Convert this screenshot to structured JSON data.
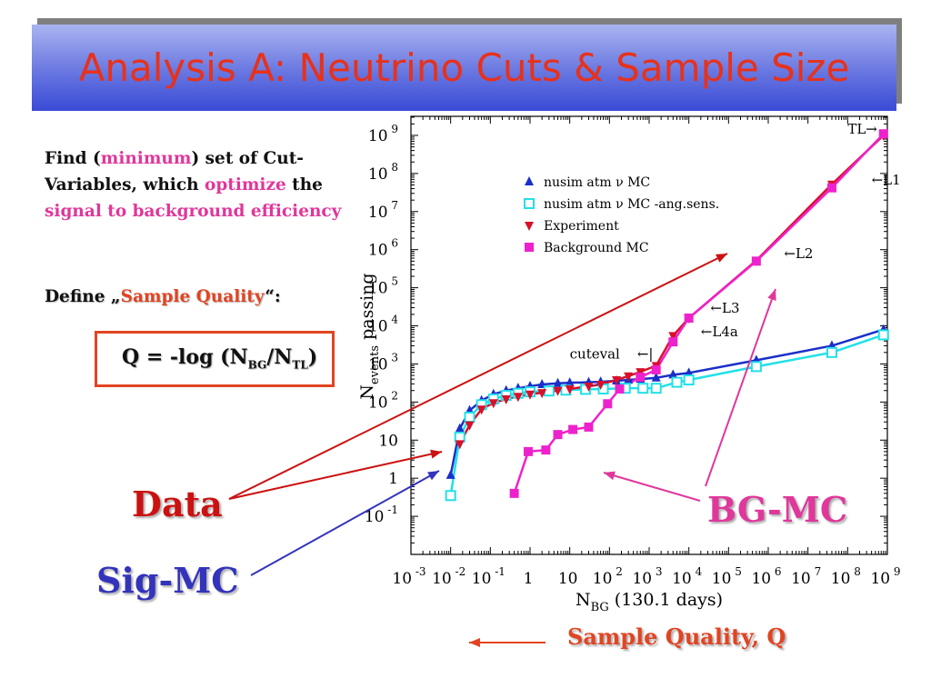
{
  "slide": {
    "title": "Analysis A: Neutrino Cuts & Sample Size",
    "intro": {
      "find": "Find (",
      "minimum": "minimum",
      "rest1": ") set of Cut-Variables, which ",
      "optimize": "optimize",
      "the": " the ",
      "signal": "signal to background efficiency"
    },
    "define": {
      "prefix": "Define „",
      "quality": "Sample Quality",
      "suffix": "“:"
    },
    "formula": {
      "q": "Q = -log (N",
      "bg": "BG",
      "slash": "/N",
      "tl": "TL",
      "close": ")"
    },
    "labels": {
      "data": "Data",
      "sigmc": "Sig-MC",
      "bgmc": "BG-MC",
      "sample_quality": "Sample Quality, Q"
    },
    "colors": {
      "title": "#e8311a",
      "data": "#cc1111",
      "sigmc": "#3333bb",
      "bgmc": "#e0379b",
      "accent": "#e24422"
    }
  },
  "chart_data": {
    "type": "line",
    "xscale": "log",
    "yscale": "log",
    "xlim": [
      0.001,
      1000000000
    ],
    "ylim": [
      0.01,
      3000000000
    ],
    "xlabel": "N_BG (130.1 days)",
    "ylabel": "N_events passing",
    "xticks": [
      "10^-3",
      "10^-2",
      "10^-1",
      "1",
      "10",
      "10^2",
      "10^3",
      "10^4",
      "10^5",
      "10^6",
      "10^7",
      "10^8",
      "10^9"
    ],
    "yticks": [
      "10^-1",
      "1",
      "10",
      "10^2",
      "10^3",
      "10^4",
      "10^5",
      "10^6",
      "10^7",
      "10^8",
      "10^9"
    ],
    "legend_position": "top-left",
    "series": [
      {
        "name": "nusim atm ν MC",
        "color": "#1a2fc9",
        "marker": "triangle-up",
        "points": [
          [
            0.01,
            1.2
          ],
          [
            0.017,
            20
          ],
          [
            0.03,
            60
          ],
          [
            0.06,
            110
          ],
          [
            0.12,
            160
          ],
          [
            0.25,
            200
          ],
          [
            0.5,
            230
          ],
          [
            1,
            260
          ],
          [
            2,
            290
          ],
          [
            5,
            310
          ],
          [
            10,
            320
          ],
          [
            30,
            330
          ],
          [
            60,
            340
          ],
          [
            150,
            360
          ],
          [
            300,
            380
          ],
          [
            600,
            400
          ],
          [
            1500,
            430
          ],
          [
            4000,
            520
          ],
          [
            10000,
            580
          ],
          [
            500000,
            1250
          ],
          [
            40000000,
            3000
          ],
          [
            800000000,
            8000
          ]
        ]
      },
      {
        "name": "nusim atm ν MC -ang.sens.",
        "color": "#22e0e8",
        "marker": "square-open",
        "points": [
          [
            0.01,
            0.35
          ],
          [
            0.017,
            12
          ],
          [
            0.03,
            40
          ],
          [
            0.06,
            85
          ],
          [
            0.12,
            120
          ],
          [
            0.25,
            150
          ],
          [
            0.5,
            170
          ],
          [
            1,
            185
          ],
          [
            3,
            195
          ],
          [
            8,
            205
          ],
          [
            25,
            215
          ],
          [
            70,
            220
          ],
          [
            250,
            230
          ],
          [
            700,
            230
          ],
          [
            1500,
            230
          ],
          [
            5000,
            330
          ],
          [
            10000,
            380
          ],
          [
            500000,
            850
          ],
          [
            40000000,
            2000
          ],
          [
            800000000,
            5800
          ]
        ]
      },
      {
        "name": "Experiment",
        "color": "#d8102a",
        "marker": "triangle-down",
        "points": [
          [
            0.017,
            8
          ],
          [
            0.03,
            25
          ],
          [
            0.06,
            65
          ],
          [
            0.12,
            95
          ],
          [
            0.25,
            120
          ],
          [
            0.5,
            140
          ],
          [
            1,
            160
          ],
          [
            2,
            175
          ],
          [
            5,
            200
          ],
          [
            10,
            220
          ],
          [
            30,
            260
          ],
          [
            60,
            290
          ],
          [
            150,
            380
          ],
          [
            300,
            480
          ],
          [
            600,
            620
          ],
          [
            1500,
            900
          ],
          [
            4000,
            5500
          ],
          [
            10000,
            16000
          ],
          [
            500000,
            520000
          ],
          [
            40000000,
            52000000
          ],
          [
            800000000,
            1000000000
          ]
        ]
      },
      {
        "name": "Background MC",
        "color": "#ee22cc",
        "marker": "square",
        "points": [
          [
            0.4,
            0.4
          ],
          [
            0.9,
            5
          ],
          [
            2.5,
            5.5
          ],
          [
            5,
            14
          ],
          [
            12,
            19
          ],
          [
            30,
            22
          ],
          [
            90,
            90
          ],
          [
            180,
            220
          ],
          [
            600,
            450
          ],
          [
            1500,
            700
          ],
          [
            4000,
            3800
          ],
          [
            10000,
            16000
          ],
          [
            500000,
            500000
          ],
          [
            40000000,
            42000000
          ],
          [
            800000000,
            1100000000
          ]
        ]
      }
    ],
    "annotations": [
      {
        "text": "TL→",
        "x": 100000000,
        "y": 1100000000
      },
      {
        "text": "←L1",
        "x": 400000000,
        "y": 52000000
      },
      {
        "text": "←L2",
        "x": 2500000,
        "y": 600000
      },
      {
        "text": "←L3",
        "x": 35000,
        "y": 22000
      },
      {
        "text": "←L4a",
        "x": 20000,
        "y": 5300
      },
      {
        "text": "cuteval",
        "x": 10,
        "y": 1400
      },
      {
        "text": "←|",
        "x": 500,
        "y": 1400
      }
    ]
  }
}
